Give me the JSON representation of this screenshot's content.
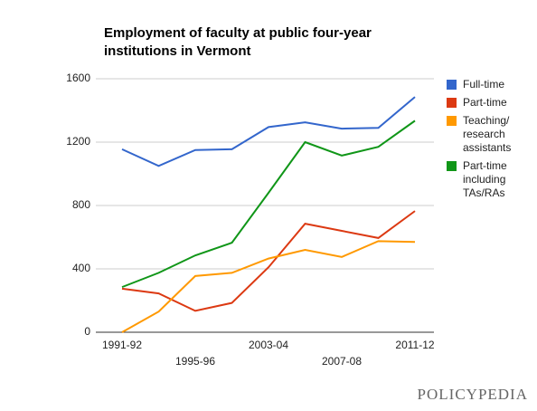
{
  "chart_data": {
    "type": "line",
    "title": "Employment of faculty at public four-year institutions in Vermont",
    "categories": [
      "1991-92",
      null,
      "1995-96",
      null,
      "2003-04",
      null,
      "2007-08",
      null,
      "2011-12"
    ],
    "series": [
      {
        "name": "Full-time",
        "color": "#3366cc",
        "values": [
          1155,
          1050,
          1150,
          1155,
          1295,
          1325,
          1285,
          1290,
          1485
        ]
      },
      {
        "name": "Part-time",
        "color": "#dc3912",
        "values": [
          275,
          245,
          135,
          185,
          410,
          685,
          640,
          595,
          765
        ]
      },
      {
        "name": "Teaching/ research assistants",
        "color": "#ff9900",
        "values": [
          0,
          130,
          355,
          375,
          465,
          520,
          475,
          575,
          570
        ]
      },
      {
        "name": "Part-time including TAs/RAs",
        "color": "#109618",
        "values": [
          285,
          375,
          485,
          565,
          880,
          1200,
          1115,
          1170,
          1335
        ]
      }
    ],
    "ylim": [
      0,
      1600
    ],
    "yticks": [
      0,
      400,
      800,
      1200,
      1600
    ],
    "grid": true,
    "legend": "right"
  },
  "logo": "POLICYPEDIA"
}
